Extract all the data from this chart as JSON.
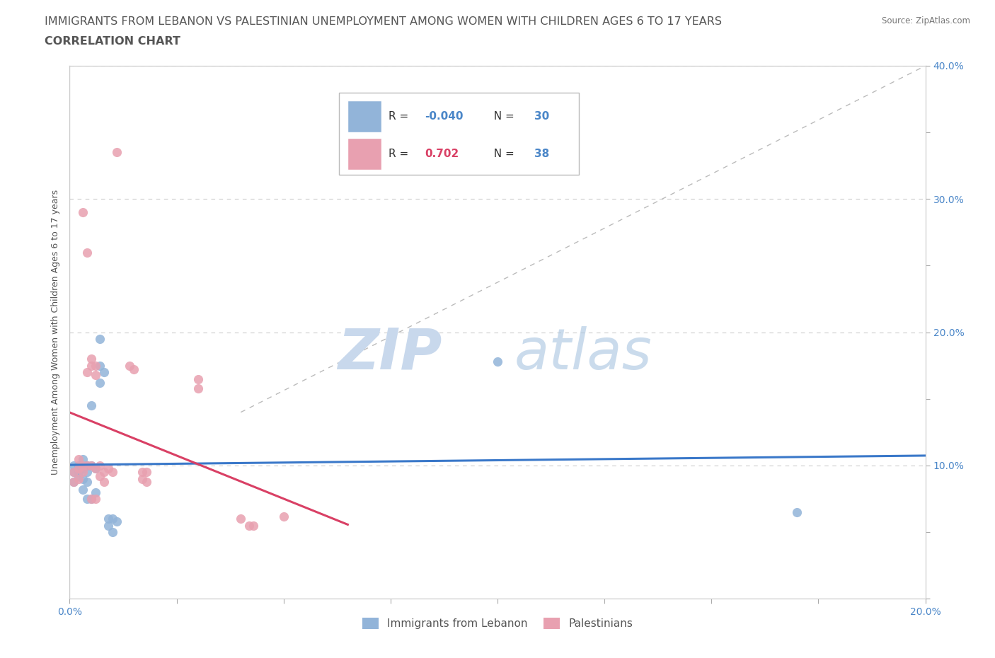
{
  "title_line1": "IMMIGRANTS FROM LEBANON VS PALESTINIAN UNEMPLOYMENT AMONG WOMEN WITH CHILDREN AGES 6 TO 17 YEARS",
  "title_line2": "CORRELATION CHART",
  "source_text": "Source: ZipAtlas.com",
  "ylabel": "Unemployment Among Women with Children Ages 6 to 17 years",
  "xlim": [
    0.0,
    0.2
  ],
  "ylim": [
    0.0,
    0.4
  ],
  "legend_R1": "-0.040",
  "legend_N1": "30",
  "legend_R2": "0.702",
  "legend_N2": "38",
  "legend_label1": "Immigrants from Lebanon",
  "legend_label2": "Palestinians",
  "blue_color": "#92b4d9",
  "pink_color": "#e8a0b0",
  "blue_line_color": "#3a78c9",
  "pink_line_color": "#d94065",
  "scatter_alpha": 0.85,
  "scatter_size": 90,
  "blue_dots": [
    [
      0.001,
      0.1
    ],
    [
      0.001,
      0.095
    ],
    [
      0.001,
      0.088
    ],
    [
      0.002,
      0.1
    ],
    [
      0.002,
      0.095
    ],
    [
      0.002,
      0.092
    ],
    [
      0.003,
      0.105
    ],
    [
      0.003,
      0.098
    ],
    [
      0.003,
      0.09
    ],
    [
      0.003,
      0.082
    ],
    [
      0.004,
      0.1
    ],
    [
      0.004,
      0.095
    ],
    [
      0.004,
      0.088
    ],
    [
      0.004,
      0.075
    ],
    [
      0.005,
      0.145
    ],
    [
      0.005,
      0.1
    ],
    [
      0.005,
      0.075
    ],
    [
      0.006,
      0.098
    ],
    [
      0.006,
      0.08
    ],
    [
      0.007,
      0.195
    ],
    [
      0.007,
      0.175
    ],
    [
      0.007,
      0.162
    ],
    [
      0.008,
      0.17
    ],
    [
      0.009,
      0.06
    ],
    [
      0.009,
      0.055
    ],
    [
      0.01,
      0.06
    ],
    [
      0.01,
      0.05
    ],
    [
      0.011,
      0.058
    ],
    [
      0.1,
      0.178
    ],
    [
      0.17,
      0.065
    ]
  ],
  "pink_dots": [
    [
      0.001,
      0.095
    ],
    [
      0.001,
      0.088
    ],
    [
      0.002,
      0.105
    ],
    [
      0.002,
      0.098
    ],
    [
      0.002,
      0.09
    ],
    [
      0.003,
      0.29
    ],
    [
      0.003,
      0.1
    ],
    [
      0.003,
      0.095
    ],
    [
      0.004,
      0.26
    ],
    [
      0.004,
      0.17
    ],
    [
      0.004,
      0.1
    ],
    [
      0.005,
      0.18
    ],
    [
      0.005,
      0.175
    ],
    [
      0.005,
      0.1
    ],
    [
      0.005,
      0.075
    ],
    [
      0.006,
      0.175
    ],
    [
      0.006,
      0.168
    ],
    [
      0.006,
      0.098
    ],
    [
      0.006,
      0.075
    ],
    [
      0.007,
      0.1
    ],
    [
      0.007,
      0.092
    ],
    [
      0.008,
      0.095
    ],
    [
      0.008,
      0.088
    ],
    [
      0.009,
      0.098
    ],
    [
      0.01,
      0.095
    ],
    [
      0.011,
      0.335
    ],
    [
      0.014,
      0.175
    ],
    [
      0.015,
      0.172
    ],
    [
      0.017,
      0.095
    ],
    [
      0.017,
      0.09
    ],
    [
      0.018,
      0.095
    ],
    [
      0.018,
      0.088
    ],
    [
      0.03,
      0.165
    ],
    [
      0.03,
      0.158
    ],
    [
      0.04,
      0.06
    ],
    [
      0.042,
      0.055
    ],
    [
      0.043,
      0.055
    ],
    [
      0.05,
      0.062
    ]
  ],
  "background_color": "#ffffff",
  "grid_color": "#cccccc",
  "title_color": "#555555",
  "axis_label_color": "#4a86c8",
  "title_fontsize": 11.5,
  "subtitle_fontsize": 11.5,
  "axis_label_fontsize": 9,
  "tick_fontsize": 10,
  "legend_R1_color": "#4a86c8",
  "legend_N1_color": "#4a86c8",
  "legend_R2_color": "#d94065",
  "legend_N2_color": "#4a86c8"
}
